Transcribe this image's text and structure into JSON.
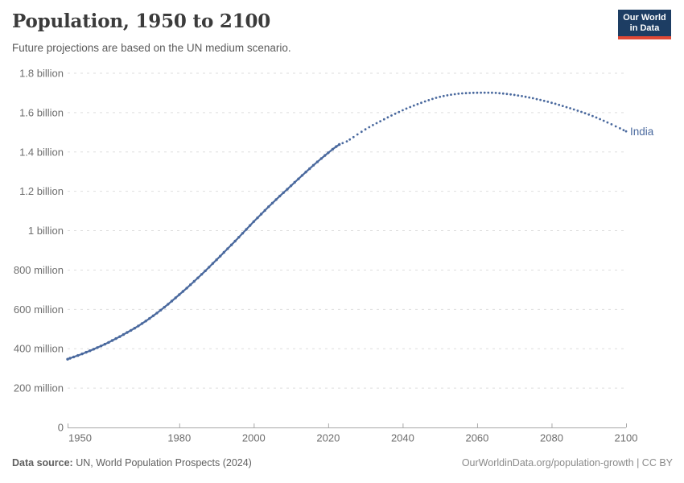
{
  "header": {
    "title": "Population, 1950 to 2100",
    "subtitle": "Future projections are based on the UN medium scenario.",
    "logo": {
      "line1": "Our World",
      "line2": "in Data",
      "bg_color": "#1d3d63",
      "accent_color": "#e04936",
      "text_color": "#ffffff"
    }
  },
  "chart_data": {
    "type": "line",
    "title": "Population, 1950 to 2100",
    "subtitle": "Future projections are based on the UN medium scenario.",
    "grid": "horizontal-dashed",
    "legend_position": "end-of-line-label",
    "projection_start_year": 2023,
    "projection_style": "dotted",
    "x": {
      "label": "",
      "min": 1950,
      "max": 2100,
      "ticks": [
        1950,
        1980,
        2000,
        2020,
        2040,
        2060,
        2080,
        2100
      ]
    },
    "y": {
      "label": "",
      "unit": "million people",
      "min": 0,
      "max": 1800,
      "ticks": [
        {
          "value": 0,
          "label": "0"
        },
        {
          "value": 200,
          "label": "200 million"
        },
        {
          "value": 400,
          "label": "400 million"
        },
        {
          "value": 600,
          "label": "600 million"
        },
        {
          "value": 800,
          "label": "800 million"
        },
        {
          "value": 1000,
          "label": "1 billion"
        },
        {
          "value": 1200,
          "label": "1.2 billion"
        },
        {
          "value": 1400,
          "label": "1.4 billion"
        },
        {
          "value": 1600,
          "label": "1.6 billion"
        },
        {
          "value": 1800,
          "label": "1.8 billion"
        }
      ]
    },
    "series": [
      {
        "name": "India",
        "label": "India",
        "color": "#4a699e",
        "unit": "million people",
        "points_million": [
          [
            1950,
            347
          ],
          [
            1955,
            382
          ],
          [
            1960,
            423
          ],
          [
            1965,
            472
          ],
          [
            1970,
            528
          ],
          [
            1975,
            596
          ],
          [
            1980,
            675
          ],
          [
            1985,
            760
          ],
          [
            1990,
            852
          ],
          [
            1995,
            947
          ],
          [
            2000,
            1046
          ],
          [
            2005,
            1140
          ],
          [
            2010,
            1228
          ],
          [
            2015,
            1315
          ],
          [
            2020,
            1396
          ],
          [
            2023,
            1438
          ],
          [
            2025,
            1454
          ],
          [
            2030,
            1515
          ],
          [
            2035,
            1566
          ],
          [
            2040,
            1612
          ],
          [
            2045,
            1650
          ],
          [
            2050,
            1680
          ],
          [
            2055,
            1696
          ],
          [
            2060,
            1701
          ],
          [
            2065,
            1700
          ],
          [
            2070,
            1690
          ],
          [
            2075,
            1673
          ],
          [
            2080,
            1650
          ],
          [
            2085,
            1622
          ],
          [
            2090,
            1590
          ],
          [
            2095,
            1550
          ],
          [
            2100,
            1505
          ]
        ]
      }
    ]
  },
  "footer": {
    "source_label": "Data source:",
    "source_text": "UN, World Population Prospects (2024)",
    "credit": "OurWorldinData.org/population-growth | CC BY"
  },
  "colors": {
    "title": "#3b3b3b",
    "subtitle": "#5b5b5b",
    "axis_text": "#6e6e6e",
    "grid": "#dedede",
    "axis_line": "#a8a8a8",
    "series": "#4a699e",
    "footer_source": "#5f5f5f",
    "footer_credit": "#8a8a8a"
  }
}
